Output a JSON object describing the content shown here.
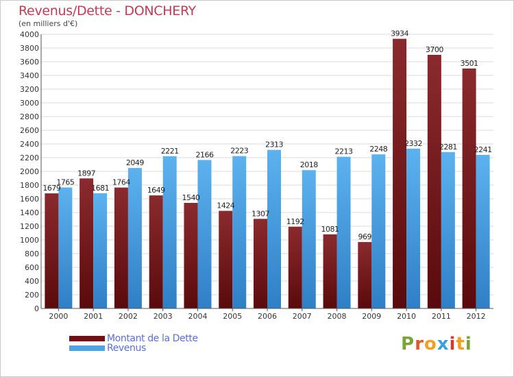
{
  "chart_data": {
    "type": "bar",
    "title": "Revenus/Dette - DONCHERY",
    "subtitle": "(en milliers d'€)",
    "categories": [
      "2000",
      "2001",
      "2002",
      "2003",
      "2004",
      "2005",
      "2006",
      "2007",
      "2008",
      "2009",
      "2010",
      "2011",
      "2012"
    ],
    "series": [
      {
        "name": "Montant de la Dette",
        "color": "#6e1216",
        "values": [
          1679,
          1897,
          1764,
          1649,
          1540,
          1424,
          1307,
          1192,
          1081,
          969,
          3934,
          3700,
          3501
        ]
      },
      {
        "name": "Revenus",
        "color": "#4ea3e3",
        "values": [
          1765,
          1681,
          2049,
          2221,
          2166,
          2223,
          2313,
          2018,
          2213,
          2248,
          2332,
          2281,
          2241
        ]
      }
    ],
    "data_labels": {
      "debt": [
        "1679",
        "1897",
        "1764",
        "1649",
        "1540",
        "1424",
        "1307",
        "1192",
        "1081",
        "969",
        "3934",
        "3700",
        "3501"
      ],
      "revenue": [
        "1765",
        "1681",
        "2049",
        "2221",
        "2166",
        "2223",
        "2313",
        "2018",
        "2213",
        "2248",
        "2332",
        "2281",
        "2241"
      ]
    },
    "ylim": [
      0,
      4000
    ],
    "yticks": [
      "0",
      "200",
      "400",
      "600",
      "800",
      "1000",
      "1200",
      "1400",
      "1600",
      "1800",
      "2000",
      "2200",
      "2400",
      "2600",
      "2800",
      "3000",
      "3200",
      "3400",
      "3600",
      "3800",
      "4000"
    ],
    "grid": true,
    "legend_position": "bottom-left"
  },
  "legend": {
    "debt_label": "Montant de la Dette",
    "revenue_label": "Revenus"
  },
  "logo": {
    "text": "Proxiti"
  }
}
